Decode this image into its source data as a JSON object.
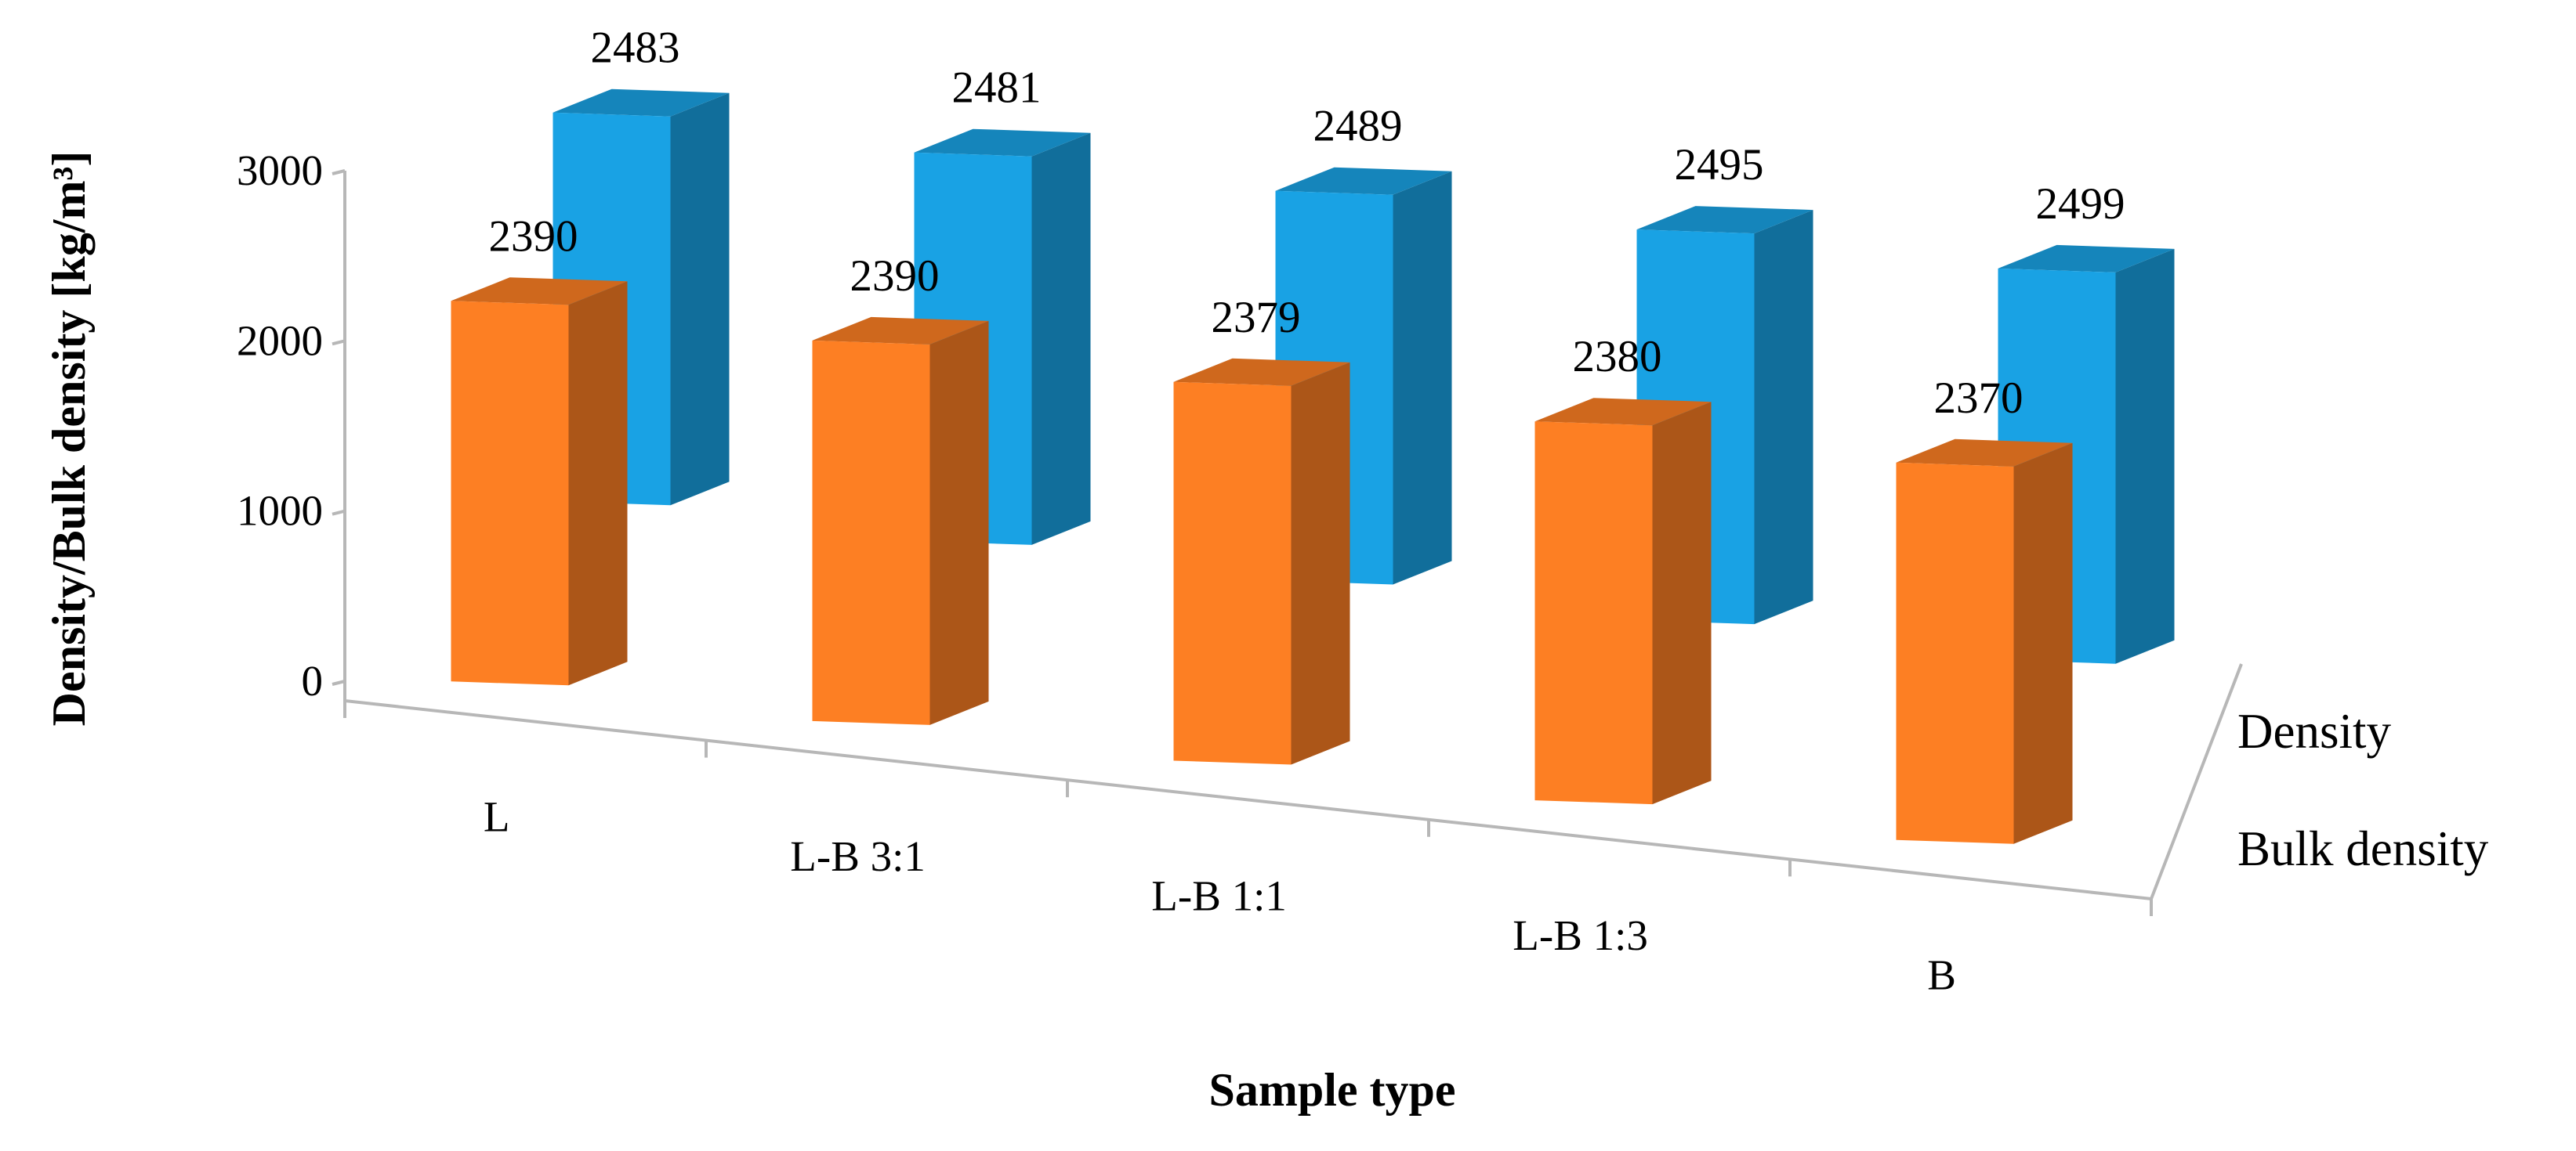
{
  "chart_data": {
    "type": "bar",
    "categories": [
      "L",
      "L-B 3:1",
      "L-B 1:1",
      "L-B 1:3",
      "B"
    ],
    "series": [
      {
        "name": "Bulk density",
        "values": [
          2390,
          2390,
          2379,
          2380,
          2370
        ],
        "color": "#fd7f23"
      },
      {
        "name": "Density",
        "values": [
          2483,
          2481,
          2489,
          2495,
          2499
        ],
        "color": "#19a2e4"
      }
    ],
    "title": "",
    "xlabel": "Sample type",
    "ylabel": "Density/Bulk density [kg/m³]",
    "ylim": [
      0,
      3000
    ],
    "yticks": [
      0,
      1000,
      2000,
      3000
    ],
    "grid": false,
    "legend": "right",
    "three_d": true
  }
}
